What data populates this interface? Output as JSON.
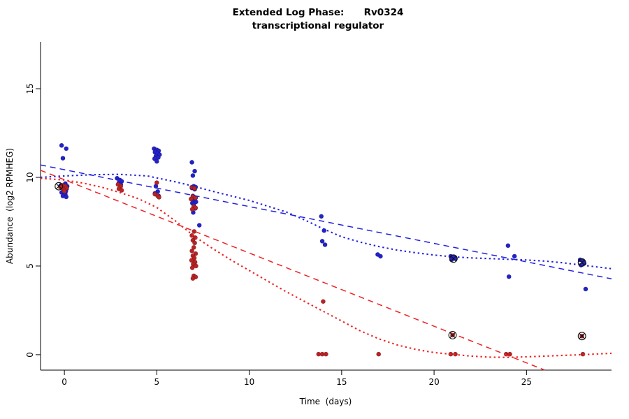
{
  "title": {
    "line1": "Extended Log Phase:      Rv0324",
    "line2": "transcriptional regulator"
  },
  "chart_data": {
    "type": "scatter",
    "title": "Extended Log Phase: Rv0324 transcriptional regulator",
    "xlabel": "Time  (days)",
    "ylabel": "Abundance  (log2 RPMHEG)",
    "xlim": [
      -1.29,
      29.6
    ],
    "ylim": [
      -0.87,
      17.64
    ],
    "x_ticks": [
      0,
      5,
      10,
      15,
      20,
      25
    ],
    "y_ticks": [
      0,
      5,
      10,
      15
    ],
    "grid": false,
    "legend": "none",
    "colors": {
      "blue": "#2222cc",
      "red": "#bb2222",
      "blue_line": "#2222dd",
      "red_line": "#ee2222",
      "marker_outline": "#111111"
    },
    "series": [
      {
        "name": "blue",
        "color_key": "blue",
        "points": [
          [
            -0.15,
            11.8
          ],
          [
            0.1,
            11.62
          ],
          [
            -0.08,
            11.08
          ],
          [
            0.05,
            9.65
          ],
          [
            -0.2,
            9.55
          ],
          [
            0.15,
            9.5
          ],
          [
            0,
            9.45
          ],
          [
            -0.1,
            9.4
          ],
          [
            0.12,
            9.36
          ],
          [
            -0.05,
            9.3
          ],
          [
            0.08,
            9.22
          ],
          [
            -0.15,
            9.15
          ],
          [
            0.05,
            9.05
          ],
          [
            -0.08,
            8.95
          ],
          [
            0.1,
            8.9
          ],
          [
            2.85,
            9.95
          ],
          [
            3,
            9.85
          ],
          [
            3.1,
            9.78
          ],
          [
            2.95,
            9.7
          ],
          [
            3.05,
            9.6
          ],
          [
            4.85,
            11.62
          ],
          [
            5,
            11.55
          ],
          [
            5.1,
            11.5
          ],
          [
            4.9,
            11.42
          ],
          [
            5.05,
            11.35
          ],
          [
            5.15,
            11.28
          ],
          [
            4.95,
            11.2
          ],
          [
            5.08,
            11.12
          ],
          [
            4.88,
            11.05
          ],
          [
            5,
            10.9
          ],
          [
            4.95,
            9.5
          ],
          [
            5.05,
            9.2
          ],
          [
            4.9,
            9.1
          ],
          [
            5.1,
            8.95
          ],
          [
            6.9,
            10.85
          ],
          [
            7.05,
            10.35
          ],
          [
            6.95,
            10.1
          ],
          [
            7,
            9.5
          ],
          [
            7.1,
            9.45
          ],
          [
            6.9,
            9.4
          ],
          [
            7.05,
            9.33
          ],
          [
            6.95,
            8.95
          ],
          [
            7,
            8.9
          ],
          [
            7.1,
            8.85
          ],
          [
            6.88,
            8.78
          ],
          [
            7.02,
            8.7
          ],
          [
            7.12,
            8.62
          ],
          [
            6.92,
            8.55
          ],
          [
            7,
            8.45
          ],
          [
            7.08,
            8.25
          ],
          [
            6.97,
            8.02
          ],
          [
            7.3,
            7.3
          ],
          [
            13.9,
            7.8
          ],
          [
            14.05,
            7
          ],
          [
            13.95,
            6.4
          ],
          [
            14.1,
            6.2
          ],
          [
            16.95,
            5.65
          ],
          [
            17.1,
            5.55
          ],
          [
            20.9,
            5.55
          ],
          [
            21.05,
            5.5
          ],
          [
            21.15,
            5.42
          ],
          [
            20.95,
            5.35
          ],
          [
            24,
            6.15
          ],
          [
            24.35,
            5.55
          ],
          [
            24.05,
            4.4
          ],
          [
            27.9,
            5.35
          ],
          [
            28.05,
            5.28
          ],
          [
            28.12,
            5.15
          ],
          [
            27.95,
            5.05
          ],
          [
            28.2,
            3.7
          ]
        ]
      },
      {
        "name": "red",
        "color_key": "red",
        "points": [
          [
            -0.1,
            9.55
          ],
          [
            0.05,
            9.5
          ],
          [
            -0.22,
            9.45
          ],
          [
            0.1,
            9.4
          ],
          [
            -0.05,
            9.32
          ],
          [
            0,
            9.22
          ],
          [
            2.9,
            9.6
          ],
          [
            3.05,
            9.5
          ],
          [
            2.95,
            9.35
          ],
          [
            3.1,
            9.27
          ],
          [
            5,
            9.7
          ],
          [
            4.9,
            9.05
          ],
          [
            5.05,
            8.95
          ],
          [
            5.12,
            8.88
          ],
          [
            6.9,
            9.45
          ],
          [
            7.05,
            9.38
          ],
          [
            6.95,
            8.92
          ],
          [
            7.08,
            8.85
          ],
          [
            6.85,
            8.78
          ],
          [
            7,
            8.35
          ],
          [
            7.1,
            8.28
          ],
          [
            6.92,
            8.2
          ],
          [
            7.02,
            6.95
          ],
          [
            6.9,
            6.72
          ],
          [
            7.08,
            6.6
          ],
          [
            6.95,
            6.45
          ],
          [
            7.05,
            6.3
          ],
          [
            7,
            6.05
          ],
          [
            6.9,
            5.85
          ],
          [
            7.1,
            5.7
          ],
          [
            6.95,
            5.58
          ],
          [
            7.03,
            5.45
          ],
          [
            6.88,
            5.32
          ],
          [
            7.07,
            5.22
          ],
          [
            6.97,
            5.1
          ],
          [
            7.12,
            5
          ],
          [
            6.92,
            4.9
          ],
          [
            7,
            4.45
          ],
          [
            7.1,
            4.38
          ],
          [
            6.95,
            4.3
          ],
          [
            14,
            3
          ],
          [
            13.75,
            0.03
          ],
          [
            13.95,
            0.03
          ],
          [
            14.15,
            0.03
          ],
          [
            17,
            0.03
          ],
          [
            20.9,
            0.03
          ],
          [
            21.15,
            0.03
          ],
          [
            21,
            1.1
          ],
          [
            23.9,
            0.03
          ],
          [
            24.1,
            0.03
          ],
          [
            28,
            1.05
          ],
          [
            28.05,
            0.03
          ]
        ]
      }
    ],
    "trend_lines": [
      {
        "name": "blue-dashed-linear-fit",
        "color_key": "blue_line",
        "style": "dashed",
        "points": [
          [
            -1.29,
            10.7
          ],
          [
            29.6,
            4.28
          ]
        ]
      },
      {
        "name": "blue-dotted-smooth-fit",
        "color_key": "blue_line",
        "style": "dotted",
        "points": [
          [
            -1.29,
            10
          ],
          [
            0,
            10.08
          ],
          [
            1.5,
            10.15
          ],
          [
            3,
            10.17
          ],
          [
            4.5,
            10.08
          ],
          [
            6,
            9.75
          ],
          [
            7,
            9.5
          ],
          [
            8,
            9.22
          ],
          [
            10,
            8.7
          ],
          [
            12,
            8.05
          ],
          [
            13,
            7.6
          ],
          [
            14,
            7.1
          ],
          [
            15,
            6.65
          ],
          [
            16,
            6.35
          ],
          [
            17,
            6.1
          ],
          [
            18,
            5.9
          ],
          [
            19,
            5.75
          ],
          [
            20,
            5.62
          ],
          [
            21,
            5.52
          ],
          [
            22,
            5.46
          ],
          [
            23,
            5.42
          ],
          [
            24,
            5.38
          ],
          [
            25,
            5.34
          ],
          [
            26,
            5.28
          ],
          [
            27,
            5.18
          ],
          [
            28,
            5.05
          ],
          [
            29.6,
            4.85
          ]
        ]
      },
      {
        "name": "red-dashed-linear-fit",
        "color_key": "red_line",
        "style": "dashed",
        "points": [
          [
            -1.29,
            10.4
          ],
          [
            25.99,
            -0.87
          ]
        ]
      },
      {
        "name": "red-dotted-smooth-fit",
        "color_key": "red_line",
        "style": "dotted",
        "points": [
          [
            -1.29,
            9.95
          ],
          [
            0,
            9.85
          ],
          [
            1,
            9.68
          ],
          [
            2,
            9.45
          ],
          [
            3,
            9.15
          ],
          [
            4,
            8.8
          ],
          [
            5,
            8.3
          ],
          [
            6,
            7.55
          ],
          [
            7,
            6.7
          ],
          [
            8,
            6
          ],
          [
            9,
            5.35
          ],
          [
            10,
            4.75
          ],
          [
            11,
            4.15
          ],
          [
            12,
            3.55
          ],
          [
            13,
            3
          ],
          [
            14,
            2.45
          ],
          [
            15,
            1.9
          ],
          [
            16,
            1.35
          ],
          [
            17,
            0.9
          ],
          [
            18,
            0.55
          ],
          [
            19,
            0.3
          ],
          [
            20,
            0.12
          ],
          [
            21,
            0.02
          ],
          [
            22,
            -0.08
          ],
          [
            23,
            -0.14
          ],
          [
            24,
            -0.15
          ],
          [
            25,
            -0.12
          ],
          [
            26,
            -0.08
          ],
          [
            27,
            -0.04
          ],
          [
            28,
            0
          ],
          [
            29.6,
            0.08
          ]
        ]
      }
    ],
    "flagged_points": [
      [
        -0.3,
        9.5
      ],
      [
        21.05,
        5.42
      ],
      [
        28,
        5.2
      ],
      [
        21,
        1.1
      ],
      [
        28,
        1.05
      ]
    ]
  }
}
